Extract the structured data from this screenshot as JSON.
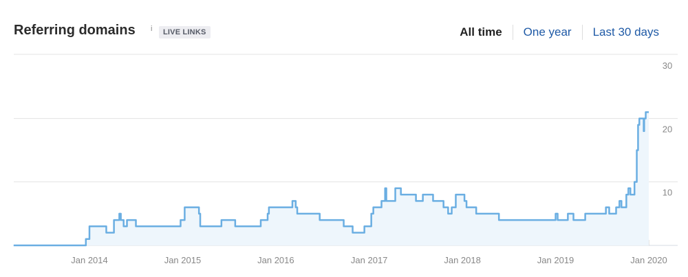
{
  "header": {
    "title": "Referring domains",
    "info_icon": "i",
    "badge": "LIVE LINKS",
    "ranges": [
      "All time",
      "One year",
      "Last 30 days"
    ],
    "active_range": "All time"
  },
  "colors": {
    "line": "#6aaee2",
    "fill": "#eef6fc",
    "grid": "#e3e3e3",
    "link": "#1f5aa6"
  },
  "chart_data": {
    "type": "area",
    "step": true,
    "title": "",
    "xlabel": "",
    "ylabel": "",
    "ylim": [
      0,
      30
    ],
    "y_ticks": [
      "10",
      "20",
      "30"
    ],
    "x_ticks": [
      "Jan 2014",
      "Jan 2015",
      "Jan 2016",
      "Jan 2017",
      "Jan 2018",
      "Jan 2019",
      "Jan 2020"
    ],
    "y_axis_position": "right",
    "grid": true,
    "points": [
      [
        "2013-03-10",
        0
      ],
      [
        "2013-12-18",
        1
      ],
      [
        "2014-01-01",
        3
      ],
      [
        "2014-03-08",
        2
      ],
      [
        "2014-04-07",
        4
      ],
      [
        "2014-04-28",
        5
      ],
      [
        "2014-05-04",
        4
      ],
      [
        "2014-05-15",
        3
      ],
      [
        "2014-05-28",
        4
      ],
      [
        "2014-07-02",
        3
      ],
      [
        "2014-12-24",
        4
      ],
      [
        "2015-01-09",
        6
      ],
      [
        "2015-03-06",
        5
      ],
      [
        "2015-03-11",
        3
      ],
      [
        "2015-06-02",
        4
      ],
      [
        "2015-07-26",
        3
      ],
      [
        "2015-11-03",
        4
      ],
      [
        "2015-11-30",
        5
      ],
      [
        "2015-12-05",
        6
      ],
      [
        "2016-03-06",
        7
      ],
      [
        "2016-03-19",
        6
      ],
      [
        "2016-03-25",
        5
      ],
      [
        "2016-06-21",
        4
      ],
      [
        "2016-09-23",
        3
      ],
      [
        "2016-10-28",
        2
      ],
      [
        "2016-12-13",
        3
      ],
      [
        "2017-01-09",
        5
      ],
      [
        "2017-01-17",
        6
      ],
      [
        "2017-02-18",
        7
      ],
      [
        "2017-03-04",
        9
      ],
      [
        "2017-03-09",
        7
      ],
      [
        "2017-04-13",
        9
      ],
      [
        "2017-05-05",
        8
      ],
      [
        "2017-07-03",
        7
      ],
      [
        "2017-07-30",
        8
      ],
      [
        "2017-09-08",
        7
      ],
      [
        "2017-10-19",
        6
      ],
      [
        "2017-11-06",
        5
      ],
      [
        "2017-11-20",
        6
      ],
      [
        "2017-12-06",
        8
      ],
      [
        "2018-01-09",
        7
      ],
      [
        "2018-01-17",
        6
      ],
      [
        "2018-02-24",
        5
      ],
      [
        "2018-05-24",
        4
      ],
      [
        "2019-01-01",
        5
      ],
      [
        "2019-01-09",
        4
      ],
      [
        "2019-02-18",
        5
      ],
      [
        "2019-03-12",
        4
      ],
      [
        "2019-04-27",
        5
      ],
      [
        "2019-07-17",
        6
      ],
      [
        "2019-07-30",
        5
      ],
      [
        "2019-08-26",
        6
      ],
      [
        "2019-09-08",
        7
      ],
      [
        "2019-09-16",
        6
      ],
      [
        "2019-10-05",
        8
      ],
      [
        "2019-10-13",
        9
      ],
      [
        "2019-10-21",
        8
      ],
      [
        "2019-11-06",
        10
      ],
      [
        "2019-11-15",
        15
      ],
      [
        "2019-11-20",
        19
      ],
      [
        "2019-11-25",
        20
      ],
      [
        "2019-12-12",
        18
      ],
      [
        "2019-12-14",
        20
      ],
      [
        "2019-12-20",
        21
      ],
      [
        "2020-01-01",
        21
      ]
    ]
  }
}
